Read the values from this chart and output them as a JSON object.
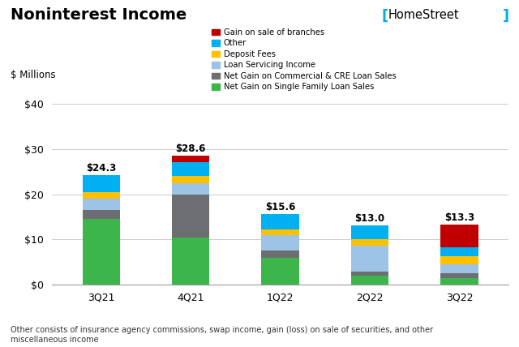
{
  "title": "Noninterest Income",
  "ylabel": "$ Millions",
  "categories": [
    "3Q21",
    "4Q21",
    "1Q22",
    "2Q22",
    "3Q22"
  ],
  "totals": [
    "$24.3",
    "$28.6",
    "$15.6",
    "$13.0",
    "$13.3"
  ],
  "series": {
    "Net Gain on Single Family Loan Sales": [
      14.5,
      10.5,
      6.0,
      2.0,
      1.5
    ],
    "Net Gain on Commercial & CRE Loan Sales": [
      2.0,
      9.5,
      1.5,
      0.8,
      1.0
    ],
    "Loan Servicing Income": [
      2.5,
      2.5,
      3.5,
      5.8,
      2.0
    ],
    "Deposit Fees": [
      1.5,
      1.5,
      1.2,
      1.5,
      1.8
    ],
    "Other": [
      3.8,
      3.1,
      3.4,
      3.0,
      2.0
    ],
    "Gain on sale of branches": [
      0.0,
      1.5,
      0.0,
      0.0,
      5.0
    ]
  },
  "colors": {
    "Net Gain on Single Family Loan Sales": "#3CB54A",
    "Net Gain on Commercial & CRE Loan Sales": "#6D6E71",
    "Loan Servicing Income": "#9DC3E6",
    "Deposit Fees": "#FFC000",
    "Other": "#00B0F0",
    "Gain on sale of branches": "#C00000"
  },
  "ylim": [
    0,
    40
  ],
  "yticks": [
    0,
    10,
    20,
    30,
    40
  ],
  "ytick_labels": [
    "$0",
    "$10",
    "$20",
    "$30",
    "$40"
  ],
  "footnote": "Other consists of insurance agency commissions, swap income, gain (loss) on sale of securities, and other\nmiscellaneous income",
  "background_color": "#FFFFFF",
  "homestreet_color": "#00AEEF",
  "legend_order": [
    "Gain on sale of branches",
    "Other",
    "Deposit Fees",
    "Loan Servicing Income",
    "Net Gain on Commercial & CRE Loan Sales",
    "Net Gain on Single Family Loan Sales"
  ]
}
